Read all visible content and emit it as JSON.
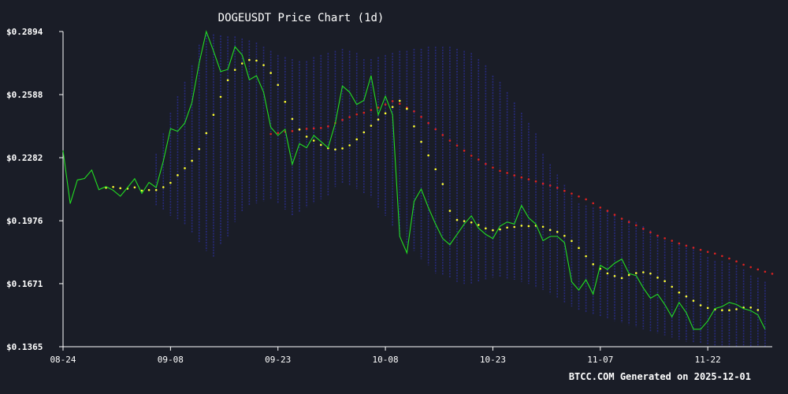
{
  "chart_data": {
    "type": "line",
    "title": "DOGEUSDT Price Chart (1d)",
    "footer": "BTCC.COM Generated on 2025-12-01",
    "y_ticks": [
      "$0.2894",
      "$0.2588",
      "$0.2282",
      "$0.1976",
      "$0.1671",
      "$0.1365"
    ],
    "y_tick_values": [
      0.2894,
      0.2588,
      0.2282,
      0.1976,
      0.1671,
      0.1365
    ],
    "x_ticks": [
      "08-24",
      "09-08",
      "09-23",
      "10-08",
      "10-23",
      "11-07",
      "11-22"
    ],
    "x_tick_days": [
      0,
      15,
      30,
      45,
      60,
      75,
      90
    ],
    "ylim": [
      0.1365,
      0.2894
    ],
    "xlim": [
      0,
      99
    ],
    "grid": false,
    "colors": {
      "background": "#1a1d27",
      "price": "#22dd22",
      "short_ma": "#ffff33",
      "long_ma": "#dd2222",
      "band": "#2a2d8c",
      "text": "#ffffff",
      "axis": "#ffffff"
    },
    "series": [
      {
        "key": "price",
        "x_start": 0,
        "values": [
          0.2317,
          0.2059,
          0.2174,
          0.2181,
          0.2222,
          0.2127,
          0.2142,
          0.2124,
          0.2095,
          0.2137,
          0.218,
          0.2109,
          0.2162,
          0.2137,
          0.2266,
          0.2423,
          0.241,
          0.245,
          0.255,
          0.274,
          0.2894,
          0.28,
          0.27,
          0.271,
          0.282,
          0.278,
          0.266,
          0.268,
          0.26,
          0.243,
          0.239,
          0.242,
          0.225,
          0.235,
          0.233,
          0.239,
          0.236,
          0.233,
          0.245,
          0.263,
          0.26,
          0.254,
          0.256,
          0.268,
          0.249,
          0.258,
          0.249,
          0.19,
          0.182,
          0.207,
          0.213,
          0.204,
          0.196,
          0.189,
          0.186,
          0.191,
          0.196,
          0.2,
          0.194,
          0.191,
          0.189,
          0.195,
          0.197,
          0.196,
          0.205,
          0.199,
          0.196,
          0.188,
          0.19,
          0.19,
          0.187,
          0.168,
          0.164,
          0.169,
          0.162,
          0.176,
          0.174,
          0.177,
          0.179,
          0.172,
          0.171,
          0.165,
          0.16,
          0.162,
          0.157,
          0.151,
          0.158,
          0.153,
          0.145,
          0.145,
          0.149,
          0.155,
          0.156,
          0.158,
          0.157,
          0.155,
          0.154,
          0.152,
          0.145
        ]
      },
      {
        "key": "short_ma",
        "x_start": 6,
        "values": [
          0.2136,
          0.214,
          0.2134,
          0.2132,
          0.2138,
          0.2122,
          0.2125,
          0.2125,
          0.2139,
          0.216,
          0.2197,
          0.2231,
          0.2267,
          0.2324,
          0.2401,
          0.249,
          0.2577,
          0.2658,
          0.2708,
          0.2739,
          0.2756,
          0.2753,
          0.2731,
          0.2693,
          0.2635,
          0.2553,
          0.247,
          0.2419,
          0.2384,
          0.2365,
          0.2344,
          0.2328,
          0.2322,
          0.2327,
          0.2342,
          0.2371,
          0.2405,
          0.2437,
          0.2467,
          0.2497,
          0.2528,
          0.2558,
          0.2519,
          0.2434,
          0.2359,
          0.2293,
          0.2226,
          0.2154,
          0.2024,
          0.198,
          0.1974,
          0.1968,
          0.1956,
          0.1939,
          0.193,
          0.1934,
          0.1943,
          0.1946,
          0.1952,
          0.195,
          0.1952,
          0.1947,
          0.1931,
          0.1922,
          0.1903,
          0.1878,
          0.1844,
          0.1804,
          0.1765,
          0.1743,
          0.1721,
          0.1708,
          0.1698,
          0.1713,
          0.1722,
          0.1726,
          0.172,
          0.17,
          0.1683,
          0.1656,
          0.1628,
          0.1609,
          0.1588,
          0.1566,
          0.1553,
          0.1546,
          0.1542,
          0.1542,
          0.1547,
          0.1555,
          0.1555,
          0.1543
        ]
      },
      {
        "key": "long_ma",
        "x_start": 29,
        "values": [
          0.2397,
          0.2402,
          0.2408,
          0.2411,
          0.2418,
          0.2422,
          0.2424,
          0.2426,
          0.2434,
          0.245,
          0.2465,
          0.2479,
          0.2492,
          0.25,
          0.2513,
          0.2525,
          0.254,
          0.2556,
          0.2544,
          0.2525,
          0.2507,
          0.248,
          0.245,
          0.242,
          0.2392,
          0.2365,
          0.2341,
          0.2316,
          0.2292,
          0.2273,
          0.2252,
          0.2234,
          0.2218,
          0.2208,
          0.2196,
          0.2186,
          0.2177,
          0.2167,
          0.2156,
          0.2147,
          0.2136,
          0.2121,
          0.2108,
          0.2094,
          0.208,
          0.2061,
          0.204,
          0.2024,
          0.2005,
          0.1986,
          0.197,
          0.1954,
          0.1937,
          0.192,
          0.1904,
          0.1891,
          0.1879,
          0.1866,
          0.1855,
          0.1845,
          0.1835,
          0.1825,
          0.1817,
          0.1805,
          0.1793,
          0.1779,
          0.1763,
          0.1751,
          0.174,
          0.1729,
          0.1719
        ]
      },
      {
        "key": "band",
        "x_start": 13,
        "upper": [
          0.23,
          0.24,
          0.25,
          0.258,
          0.265,
          0.273,
          0.283,
          0.289,
          0.288,
          0.2875,
          0.287,
          0.287,
          0.286,
          0.285,
          0.284,
          0.282,
          0.28,
          0.278,
          0.277,
          0.276,
          0.275,
          0.275,
          0.277,
          0.278,
          0.279,
          0.28,
          0.281,
          0.28,
          0.279,
          0.276,
          0.276,
          0.277,
          0.278,
          0.279,
          0.28,
          0.28,
          0.281,
          0.281,
          0.282,
          0.282,
          0.282,
          0.282,
          0.281,
          0.28,
          0.279,
          0.276,
          0.273,
          0.268,
          0.265,
          0.26,
          0.255,
          0.25,
          0.245,
          0.24,
          0.23,
          0.225,
          0.22,
          0.215,
          0.21,
          0.206,
          0.205,
          0.204,
          0.203,
          0.202,
          0.2,
          0.199,
          0.198,
          0.197,
          0.195,
          0.193,
          0.19,
          0.188,
          0.187,
          0.186,
          0.186,
          0.185,
          0.182,
          0.18,
          0.178,
          0.178,
          0.177,
          0.176,
          0.174,
          0.171,
          0.17,
          0.168
        ],
        "lower": [
          0.205,
          0.203,
          0.2,
          0.198,
          0.196,
          0.192,
          0.187,
          0.183,
          0.18,
          0.186,
          0.19,
          0.197,
          0.202,
          0.205,
          0.206,
          0.207,
          0.208,
          0.206,
          0.203,
          0.2,
          0.202,
          0.204,
          0.206,
          0.208,
          0.21,
          0.214,
          0.216,
          0.215,
          0.213,
          0.211,
          0.209,
          0.204,
          0.2,
          0.195,
          0.19,
          0.186,
          0.183,
          0.179,
          0.176,
          0.172,
          0.171,
          0.17,
          0.168,
          0.167,
          0.167,
          0.168,
          0.169,
          0.17,
          0.17,
          0.169,
          0.169,
          0.168,
          0.167,
          0.165,
          0.164,
          0.162,
          0.16,
          0.158,
          0.156,
          0.154,
          0.153,
          0.152,
          0.151,
          0.15,
          0.149,
          0.148,
          0.147,
          0.146,
          0.145,
          0.144,
          0.143,
          0.142,
          0.141,
          0.14,
          0.139,
          0.1385,
          0.138,
          0.1375,
          0.137,
          0.1368,
          0.1366,
          0.1365,
          0.1365,
          0.1365,
          0.1365,
          0.1365
        ]
      }
    ]
  }
}
